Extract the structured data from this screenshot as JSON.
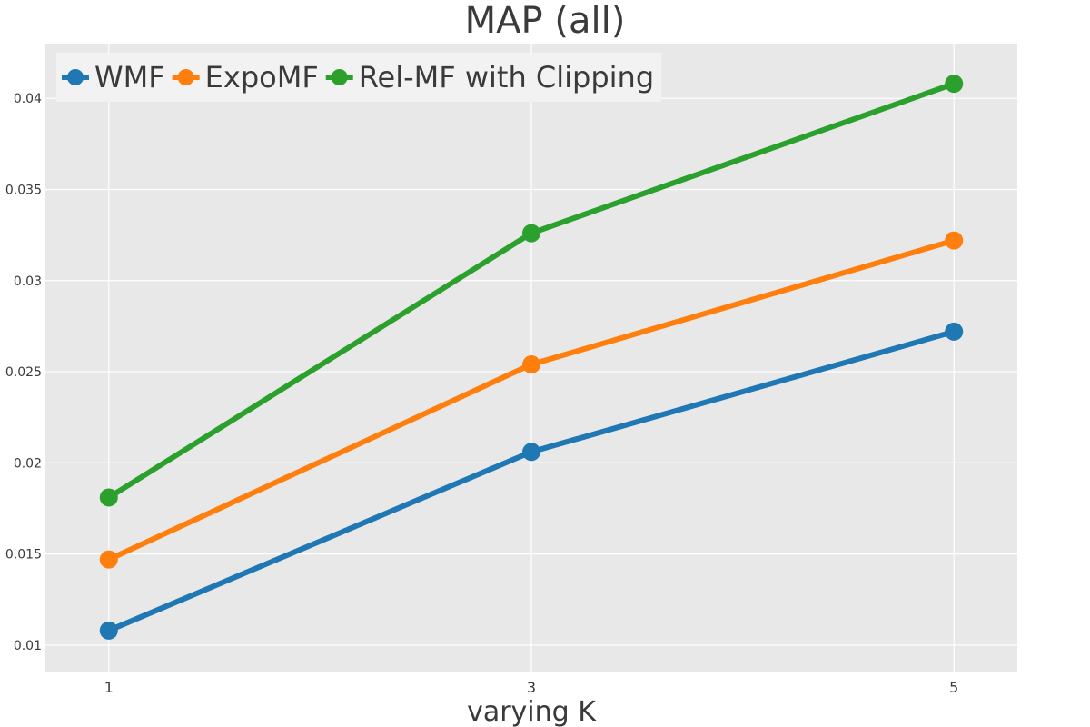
{
  "chart_data": {
    "type": "line",
    "title": "MAP (all)",
    "xlabel": "varying K",
    "ylabel": "",
    "x": [
      1,
      3,
      5
    ],
    "x_tick_labels": [
      "1",
      "3",
      "5"
    ],
    "y_ticks": [
      0.01,
      0.015,
      0.02,
      0.025,
      0.03,
      0.035,
      0.04
    ],
    "y_tick_labels": [
      "0.01",
      "0.015",
      "0.02",
      "0.025",
      "0.03",
      "0.035",
      "0.04"
    ],
    "ylim": [
      0.0085,
      0.043
    ],
    "xlim": [
      0.7,
      5.3
    ],
    "grid": true,
    "legend_position": "top-left",
    "series": [
      {
        "name": "WMF",
        "color": "#1f77b4",
        "values": [
          0.0108,
          0.0206,
          0.0272
        ]
      },
      {
        "name": "ExpoMF",
        "color": "#ff7f0e",
        "values": [
          0.0147,
          0.0254,
          0.0322
        ]
      },
      {
        "name": "Rel-MF with Clipping",
        "color": "#2ca02c",
        "values": [
          0.0181,
          0.0326,
          0.0408
        ]
      }
    ]
  }
}
